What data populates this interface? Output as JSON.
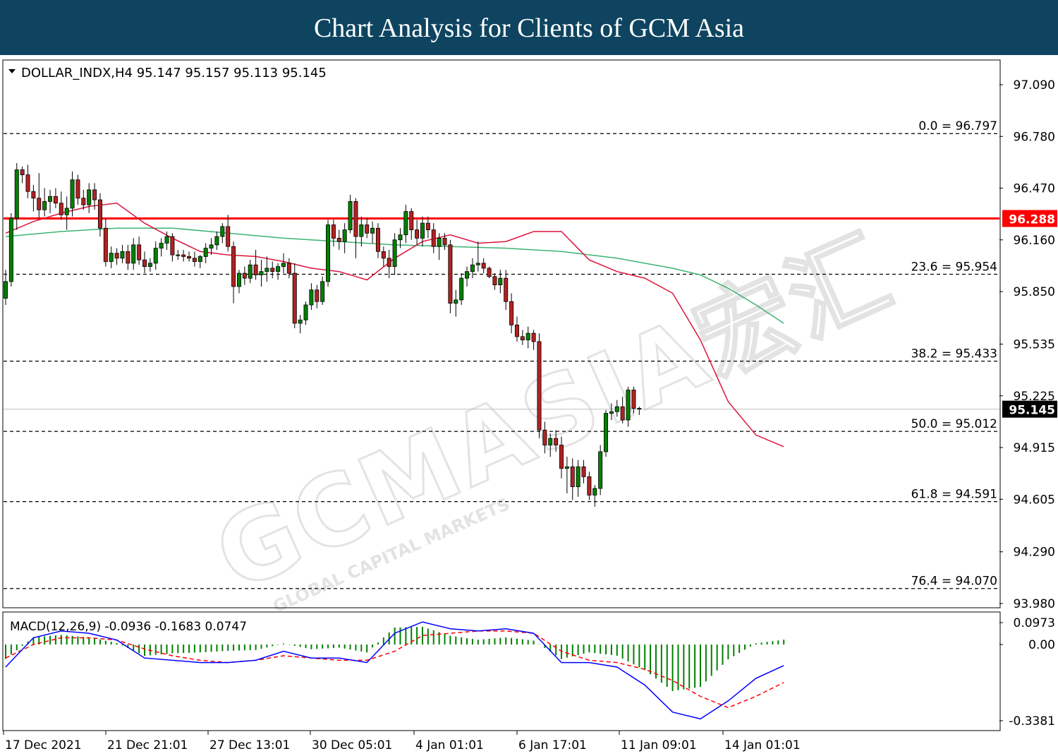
{
  "banner": {
    "title": "Chart Analysis for Clients of GCM Asia"
  },
  "watermark": {
    "text": "GCMASIA宏汇",
    "subtext": "GLOBAL CAPITAL MARKETS"
  },
  "chart_data": [
    {
      "type": "candlestick",
      "symbol_line": "DOLLAR_INDX,H4  95.147 95.157 95.113 95.145",
      "ylim": [
        93.98,
        97.2
      ],
      "y_ticks": [
        "97.090",
        "96.780",
        "96.470",
        "96.160",
        "95.850",
        "95.535",
        "95.225",
        "94.915",
        "94.605",
        "94.290",
        "93.980"
      ],
      "x_ticks": [
        "17 Dec 2021",
        "21 Dec 21:01",
        "27 Dec 13:01",
        "30 Dec 05:01",
        "4 Jan 01:01",
        "6 Jan 17:01",
        "11 Jan 09:01",
        "14 Jan 01:01"
      ],
      "horizontal_line": {
        "value": 96.288,
        "label": "96.288",
        "color": "#ff0000"
      },
      "current_price": {
        "value": 95.145,
        "label": "95.145"
      },
      "fibonacci": [
        {
          "value": 96.797,
          "label": "0.0 = 96.797"
        },
        {
          "value": 95.954,
          "label": "23.6 = 95.954"
        },
        {
          "value": 95.433,
          "label": "38.2 = 95.433"
        },
        {
          "value": 95.012,
          "label": "50.0 = 95.012"
        },
        {
          "value": 94.591,
          "label": "61.8 = 94.591"
        },
        {
          "value": 94.07,
          "label": "76.4 = 94.070"
        }
      ],
      "candles": [
        [
          95.81,
          95.98,
          95.77,
          95.91
        ],
        [
          95.91,
          96.32,
          95.88,
          96.29
        ],
        [
          96.29,
          96.62,
          96.22,
          96.58
        ],
        [
          96.58,
          96.6,
          96.5,
          96.55
        ],
        [
          96.55,
          96.61,
          96.41,
          96.45
        ],
        [
          96.45,
          96.49,
          96.33,
          96.41
        ],
        [
          96.41,
          96.56,
          96.29,
          96.34
        ],
        [
          96.34,
          96.47,
          96.3,
          96.39
        ],
        [
          96.39,
          96.46,
          96.32,
          96.42
        ],
        [
          96.42,
          96.47,
          96.35,
          96.38
        ],
        [
          96.38,
          96.45,
          96.28,
          96.31
        ],
        [
          96.31,
          96.42,
          96.22,
          96.35
        ],
        [
          96.35,
          96.57,
          96.3,
          96.52
        ],
        [
          96.52,
          96.55,
          96.37,
          96.41
        ],
        [
          96.41,
          96.46,
          96.34,
          96.37
        ],
        [
          96.37,
          96.5,
          96.32,
          96.46
        ],
        [
          96.46,
          96.5,
          96.34,
          96.4
        ],
        [
          96.4,
          96.44,
          96.18,
          96.23
        ],
        [
          96.23,
          96.29,
          96.0,
          96.03
        ],
        [
          96.03,
          96.12,
          95.99,
          96.08
        ],
        [
          96.08,
          96.11,
          96.01,
          96.05
        ],
        [
          96.05,
          96.13,
          96.02,
          96.09
        ],
        [
          96.09,
          96.13,
          95.98,
          96.02
        ],
        [
          96.02,
          96.17,
          95.98,
          96.13
        ],
        [
          96.13,
          96.18,
          96.01,
          96.04
        ],
        [
          96.04,
          96.09,
          95.96,
          96.0
        ],
        [
          96.0,
          96.05,
          95.97,
          96.02
        ],
        [
          96.02,
          96.15,
          95.98,
          96.11
        ],
        [
          96.11,
          96.17,
          96.06,
          96.14
        ],
        [
          96.14,
          96.21,
          96.1,
          96.18
        ],
        [
          96.18,
          96.2,
          96.03,
          96.07
        ],
        [
          96.07,
          96.1,
          96.04,
          96.07
        ],
        [
          96.07,
          96.1,
          96.03,
          96.06
        ],
        [
          96.06,
          96.09,
          96.03,
          96.05
        ],
        [
          96.05,
          96.09,
          96.0,
          96.03
        ],
        [
          96.03,
          96.07,
          95.99,
          96.06
        ],
        [
          96.06,
          96.14,
          96.02,
          96.11
        ],
        [
          96.11,
          96.17,
          96.07,
          96.13
        ],
        [
          96.13,
          96.21,
          96.1,
          96.18
        ],
        [
          96.18,
          96.26,
          96.14,
          96.24
        ],
        [
          96.24,
          96.31,
          96.09,
          96.12
        ],
        [
          96.12,
          96.15,
          95.78,
          95.88
        ],
        [
          95.88,
          95.98,
          95.84,
          95.96
        ],
        [
          95.96,
          96.0,
          95.89,
          95.93
        ],
        [
          95.93,
          96.04,
          95.9,
          96.01
        ],
        [
          96.01,
          96.1,
          95.92,
          95.95
        ],
        [
          95.95,
          96.04,
          95.88,
          95.97
        ],
        [
          95.97,
          96.06,
          95.91,
          95.99
        ],
        [
          95.99,
          96.03,
          95.93,
          95.97
        ],
        [
          95.97,
          96.02,
          95.92,
          96.0
        ],
        [
          96.0,
          96.08,
          95.96,
          96.02
        ],
        [
          96.02,
          96.05,
          95.93,
          95.96
        ],
        [
          95.96,
          96.02,
          95.63,
          95.66
        ],
        [
          95.66,
          95.71,
          95.6,
          95.68
        ],
        [
          95.68,
          95.79,
          95.65,
          95.77
        ],
        [
          95.77,
          95.9,
          95.74,
          95.86
        ],
        [
          95.86,
          95.89,
          95.75,
          95.79
        ],
        [
          95.79,
          95.94,
          95.77,
          95.91
        ],
        [
          95.91,
          96.28,
          95.88,
          96.25
        ],
        [
          96.25,
          96.28,
          96.12,
          96.17
        ],
        [
          96.17,
          96.22,
          96.1,
          96.15
        ],
        [
          96.15,
          96.26,
          96.08,
          96.22
        ],
        [
          96.22,
          96.43,
          96.2,
          96.39
        ],
        [
          96.39,
          96.41,
          96.05,
          96.18
        ],
        [
          96.18,
          96.3,
          96.12,
          96.25
        ],
        [
          96.25,
          96.29,
          96.17,
          96.2
        ],
        [
          96.2,
          96.27,
          96.14,
          96.23
        ],
        [
          96.23,
          96.26,
          96.05,
          96.09
        ],
        [
          96.09,
          96.12,
          96.0,
          96.05
        ],
        [
          96.05,
          96.1,
          95.93,
          96.0
        ],
        [
          96.0,
          96.2,
          95.95,
          96.16
        ],
        [
          96.16,
          96.23,
          96.11,
          96.19
        ],
        [
          96.19,
          96.37,
          96.14,
          96.33
        ],
        [
          96.33,
          96.35,
          96.16,
          96.22
        ],
        [
          96.22,
          96.28,
          96.13,
          96.17
        ],
        [
          96.17,
          96.3,
          96.12,
          96.26
        ],
        [
          96.26,
          96.3,
          96.17,
          96.22
        ],
        [
          96.22,
          96.26,
          96.08,
          96.12
        ],
        [
          96.12,
          96.2,
          96.04,
          96.17
        ],
        [
          96.17,
          96.2,
          96.1,
          96.13
        ],
        [
          96.13,
          96.16,
          95.72,
          95.78
        ],
        [
          95.78,
          95.86,
          95.7,
          95.8
        ],
        [
          95.8,
          95.96,
          95.77,
          95.93
        ],
        [
          95.93,
          96.0,
          95.88,
          95.97
        ],
        [
          95.97,
          96.05,
          95.93,
          96.01
        ],
        [
          96.01,
          96.15,
          95.97,
          96.02
        ],
        [
          96.02,
          96.05,
          95.96,
          95.99
        ],
        [
          95.99,
          96.0,
          95.93,
          95.94
        ],
        [
          95.94,
          95.96,
          95.86,
          95.89
        ],
        [
          95.89,
          95.98,
          95.84,
          95.93
        ],
        [
          95.93,
          95.98,
          95.74,
          95.79
        ],
        [
          95.79,
          95.84,
          95.6,
          95.65
        ],
        [
          95.65,
          95.7,
          95.55,
          95.58
        ],
        [
          95.58,
          95.62,
          95.53,
          95.56
        ],
        [
          95.56,
          95.64,
          95.51,
          95.6
        ],
        [
          95.6,
          95.62,
          95.5,
          95.55
        ],
        [
          95.55,
          95.6,
          94.97,
          95.02
        ],
        [
          95.02,
          95.07,
          94.88,
          94.93
        ],
        [
          94.93,
          95.0,
          94.86,
          94.97
        ],
        [
          94.97,
          95.02,
          94.89,
          94.93
        ],
        [
          94.93,
          94.98,
          94.73,
          94.79
        ],
        [
          94.79,
          94.86,
          94.64,
          94.8
        ],
        [
          94.8,
          94.85,
          94.6,
          94.68
        ],
        [
          94.68,
          94.84,
          94.62,
          94.8
        ],
        [
          94.8,
          94.84,
          94.7,
          94.74
        ],
        [
          94.74,
          94.77,
          94.6,
          94.63
        ],
        [
          94.63,
          94.69,
          94.56,
          94.67
        ],
        [
          94.67,
          94.93,
          94.63,
          94.89
        ],
        [
          94.89,
          95.14,
          94.86,
          95.12
        ],
        [
          95.12,
          95.18,
          95.08,
          95.13
        ],
        [
          95.13,
          95.2,
          95.1,
          95.16
        ],
        [
          95.16,
          95.22,
          95.06,
          95.08
        ],
        [
          95.08,
          95.28,
          95.04,
          95.26
        ],
        [
          95.26,
          95.28,
          95.12,
          95.15
        ],
        [
          95.15,
          95.16,
          95.11,
          95.145
        ]
      ],
      "ma_fast_color": "#dc143c",
      "ma_slow_color": "#3cb371",
      "ma_fast": [
        [
          0,
          96.2
        ],
        [
          5,
          96.27
        ],
        [
          10,
          96.32
        ],
        [
          15,
          96.36
        ],
        [
          20,
          96.38
        ],
        [
          25,
          96.26
        ],
        [
          30,
          96.17
        ],
        [
          35,
          96.09
        ],
        [
          40,
          96.07
        ],
        [
          45,
          96.06
        ],
        [
          50,
          96.03
        ],
        [
          55,
          95.99
        ],
        [
          60,
          95.97
        ],
        [
          65,
          95.92
        ],
        [
          70,
          96.05
        ],
        [
          75,
          96.15
        ],
        [
          80,
          96.19
        ],
        [
          85,
          96.14
        ],
        [
          90,
          96.15
        ],
        [
          95,
          96.21
        ],
        [
          100,
          96.21
        ],
        [
          105,
          96.04
        ],
        [
          110,
          95.97
        ],
        [
          115,
          95.93
        ],
        [
          120,
          95.84
        ],
        [
          125,
          95.56
        ],
        [
          130,
          95.19
        ],
        [
          135,
          94.99
        ],
        [
          140,
          94.92
        ]
      ],
      "ma_slow": [
        [
          0,
          96.18
        ],
        [
          10,
          96.21
        ],
        [
          20,
          96.23
        ],
        [
          30,
          96.23
        ],
        [
          40,
          96.2
        ],
        [
          50,
          96.17
        ],
        [
          60,
          96.15
        ],
        [
          70,
          96.13
        ],
        [
          80,
          96.12
        ],
        [
          90,
          96.11
        ],
        [
          100,
          96.09
        ],
        [
          110,
          96.05
        ],
        [
          120,
          95.99
        ],
        [
          125,
          95.95
        ],
        [
          130,
          95.87
        ],
        [
          135,
          95.77
        ],
        [
          140,
          95.66
        ]
      ]
    },
    {
      "type": "macd",
      "label": "MACD(12,26,9) -0.0936 -0.1683 0.0747",
      "ylim": [
        -0.35,
        0.115
      ],
      "y_ticks": [
        "0.0973",
        "0.00",
        "-0.3381"
      ],
      "main_color": "#0000ff",
      "signal_color": "#ff0000",
      "hist_color": "#008000",
      "main": [
        [
          0,
          -0.1
        ],
        [
          5,
          0.03
        ],
        [
          10,
          0.06
        ],
        [
          15,
          0.05
        ],
        [
          20,
          0.02
        ],
        [
          25,
          -0.06
        ],
        [
          30,
          -0.07
        ],
        [
          35,
          -0.08
        ],
        [
          40,
          -0.08
        ],
        [
          45,
          -0.07
        ],
        [
          50,
          -0.03
        ],
        [
          55,
          -0.06
        ],
        [
          60,
          -0.06
        ],
        [
          65,
          -0.08
        ],
        [
          70,
          0.05
        ],
        [
          75,
          0.1
        ],
        [
          80,
          0.07
        ],
        [
          85,
          0.06
        ],
        [
          90,
          0.07
        ],
        [
          95,
          0.05
        ],
        [
          100,
          -0.08
        ],
        [
          105,
          -0.08
        ],
        [
          110,
          -0.1
        ],
        [
          115,
          -0.18
        ],
        [
          120,
          -0.3
        ],
        [
          125,
          -0.33
        ],
        [
          130,
          -0.25
        ],
        [
          135,
          -0.15
        ],
        [
          140,
          -0.0936
        ]
      ],
      "signal": [
        [
          0,
          -0.06
        ],
        [
          5,
          0.0
        ],
        [
          10,
          0.03
        ],
        [
          15,
          0.03
        ],
        [
          20,
          0.02
        ],
        [
          25,
          -0.02
        ],
        [
          30,
          -0.05
        ],
        [
          35,
          -0.07
        ],
        [
          40,
          -0.08
        ],
        [
          45,
          -0.07
        ],
        [
          50,
          -0.05
        ],
        [
          55,
          -0.06
        ],
        [
          60,
          -0.07
        ],
        [
          65,
          -0.07
        ],
        [
          70,
          -0.03
        ],
        [
          75,
          0.04
        ],
        [
          80,
          0.05
        ],
        [
          85,
          0.06
        ],
        [
          90,
          0.06
        ],
        [
          95,
          0.05
        ],
        [
          100,
          -0.03
        ],
        [
          105,
          -0.07
        ],
        [
          110,
          -0.08
        ],
        [
          115,
          -0.11
        ],
        [
          120,
          -0.16
        ],
        [
          125,
          -0.23
        ],
        [
          130,
          -0.28
        ],
        [
          135,
          -0.23
        ],
        [
          140,
          -0.1683
        ]
      ]
    }
  ]
}
